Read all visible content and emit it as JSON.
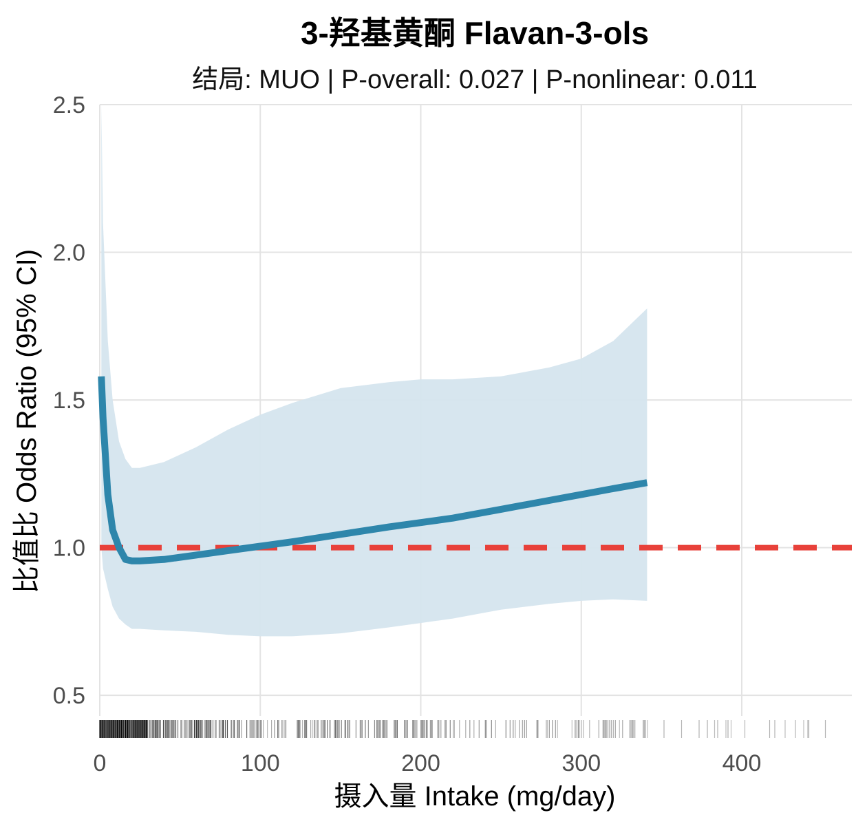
{
  "chart_data": {
    "type": "line",
    "title": "3-羟基黄酮 Flavan-3-ols",
    "subtitle": "结局: MUO | P-overall: 0.027 | P-nonlinear: 0.011",
    "xlabel": "摄入量 Intake (mg/day)",
    "ylabel": "比值比 Odds Ratio (95% CI)",
    "xlim": [
      0,
      468
    ],
    "ylim": [
      0.3,
      2.5
    ],
    "x_ticks": [
      "0",
      "100",
      "200",
      "300",
      "400"
    ],
    "y_ticks": [
      "0.5",
      "1.0",
      "1.5",
      "2.0",
      "2.5"
    ],
    "grid": true,
    "reference_line": {
      "y": 1.0,
      "style": "dashed",
      "color": "#e8413a"
    },
    "colors": {
      "line": "#2e86ab",
      "band": "#d5e5ee",
      "rug": "#000000"
    },
    "series": [
      {
        "x": [
          1,
          2,
          5,
          8,
          12,
          16,
          20,
          25,
          40,
          60,
          80,
          100,
          120,
          150,
          180,
          200,
          220,
          250,
          280,
          300,
          320,
          341
        ],
        "y": [
          1.58,
          1.44,
          1.18,
          1.06,
          1.0,
          0.96,
          0.955,
          0.955,
          0.96,
          0.975,
          0.99,
          1.005,
          1.02,
          1.045,
          1.07,
          1.085,
          1.1,
          1.13,
          1.16,
          1.18,
          1.2,
          1.22
        ],
        "lower": [
          1.0,
          0.93,
          0.86,
          0.8,
          0.76,
          0.74,
          0.725,
          0.725,
          0.72,
          0.715,
          0.705,
          0.7,
          0.7,
          0.71,
          0.73,
          0.745,
          0.76,
          0.79,
          0.81,
          0.82,
          0.825,
          0.82
        ],
        "upper": [
          2.5,
          2.1,
          1.7,
          1.5,
          1.36,
          1.3,
          1.27,
          1.27,
          1.29,
          1.34,
          1.4,
          1.45,
          1.49,
          1.54,
          1.56,
          1.57,
          1.57,
          1.58,
          1.61,
          1.64,
          1.7,
          1.81
        ]
      }
    ],
    "rug_density": [
      {
        "x0": 0,
        "x1": 30,
        "density": 0.98
      },
      {
        "x0": 30,
        "x1": 80,
        "density": 0.75
      },
      {
        "x0": 80,
        "x1": 150,
        "density": 0.55
      },
      {
        "x0": 150,
        "x1": 210,
        "density": 0.45
      },
      {
        "x0": 210,
        "x1": 300,
        "density": 0.3
      },
      {
        "x0": 300,
        "x1": 340,
        "density": 0.22
      },
      {
        "x0": 340,
        "x1": 400,
        "density": 0.12
      },
      {
        "x0": 400,
        "x1": 468,
        "density": 0.08
      }
    ]
  }
}
